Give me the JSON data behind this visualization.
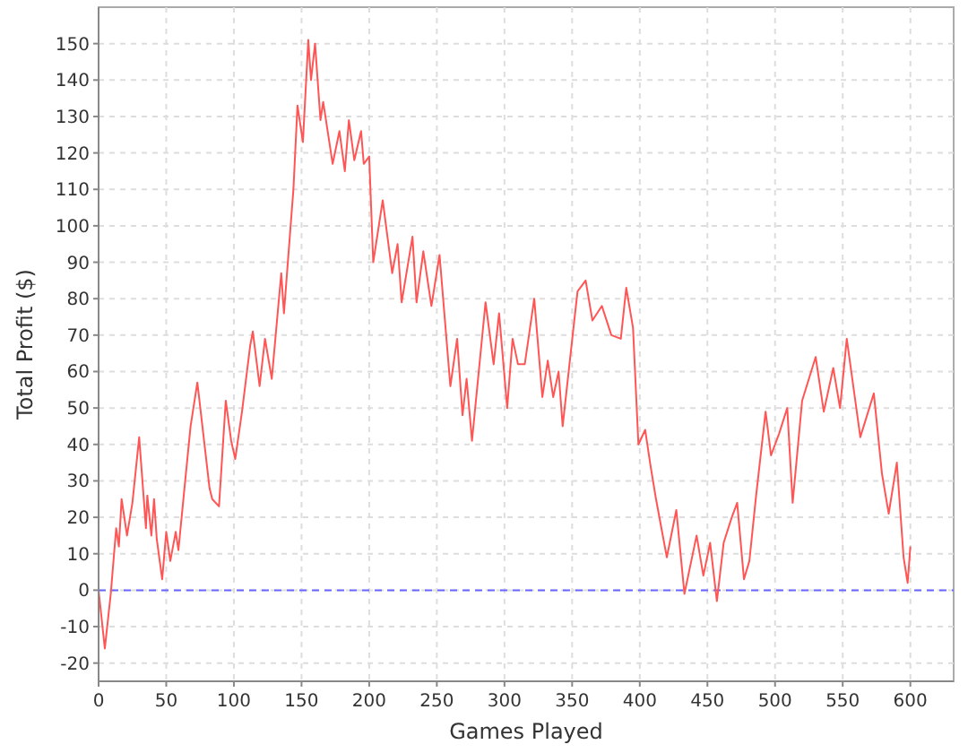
{
  "chart_data": {
    "type": "line",
    "xlabel": "Games Played",
    "ylabel": "Total Profit ($)",
    "xlim": [
      0,
      632
    ],
    "ylim": [
      -25,
      160
    ],
    "xticks": [
      0,
      50,
      100,
      150,
      200,
      250,
      300,
      350,
      400,
      450,
      500,
      550,
      600
    ],
    "yticks": [
      -20,
      -10,
      0,
      10,
      20,
      30,
      40,
      50,
      60,
      70,
      80,
      90,
      100,
      110,
      120,
      130,
      140,
      150
    ],
    "grid": true,
    "ref_lines": [
      {
        "axis": "y",
        "value": 0,
        "color": "#6666ff",
        "line_style": "dashed"
      }
    ],
    "series": [
      {
        "color": "#ff5555",
        "x": [
          0,
          4.6,
          9,
          13,
          15,
          17,
          21,
          25,
          30,
          35,
          36,
          39,
          41,
          43,
          47,
          50,
          53,
          57,
          59,
          64,
          68,
          73,
          82,
          84,
          89,
          94,
          98,
          101,
          106,
          112,
          114,
          119,
          123,
          128,
          135,
          137,
          144,
          147,
          151,
          155,
          157,
          160,
          164,
          166,
          173,
          178,
          182,
          185,
          189,
          194,
          196,
          200,
          203,
          210,
          217,
          221,
          224,
          232,
          235,
          240,
          246,
          252,
          260,
          265,
          269,
          272,
          276,
          286,
          292,
          296,
          302,
          306,
          310,
          315,
          322,
          328,
          332,
          336,
          340,
          343,
          351,
          354,
          360,
          365,
          372,
          379,
          386,
          390,
          395,
          399,
          404,
          408,
          412,
          420,
          427,
          433,
          442,
          447,
          452,
          457,
          462,
          468,
          472,
          477,
          481,
          486,
          493,
          497,
          503,
          509,
          513,
          520,
          530,
          536,
          543,
          548,
          553,
          563,
          573,
          579,
          584,
          590,
          595,
          598,
          600
        ],
        "values": [
          0,
          -16,
          -1,
          17,
          12,
          25,
          15,
          24,
          42,
          17,
          26,
          15,
          25,
          14,
          3,
          16,
          8,
          16,
          11,
          30,
          45,
          57,
          28,
          25,
          23,
          52,
          41,
          36,
          49,
          67,
          71,
          56,
          69,
          58,
          87,
          76,
          110,
          133,
          123,
          151,
          140,
          150,
          129,
          134,
          117,
          126,
          115,
          129,
          118,
          126,
          117,
          119,
          90,
          107,
          87,
          95,
          79,
          97,
          79,
          93,
          78,
          92,
          56,
          69,
          48,
          58,
          41,
          79,
          62,
          76,
          50,
          69,
          62,
          62,
          80,
          53,
          63,
          53,
          60,
          45,
          72,
          82,
          85,
          74,
          78,
          70,
          69,
          83,
          72,
          40,
          44,
          34,
          25,
          9,
          22,
          -1,
          15,
          4,
          13,
          -3,
          13,
          20,
          24,
          3,
          8,
          26,
          49,
          37,
          43,
          50,
          24,
          52,
          64,
          49,
          61,
          50,
          69,
          42,
          54,
          32,
          21,
          35,
          9,
          2,
          12
        ]
      }
    ]
  }
}
